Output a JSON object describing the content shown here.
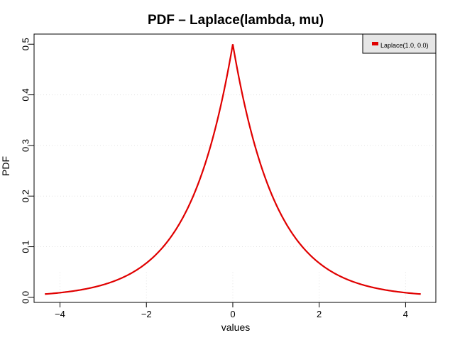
{
  "chart_data": {
    "type": "line",
    "title": "PDF – Laplace(lambda, mu)",
    "xlabel": "values",
    "ylabel": "PDF",
    "xlim": [
      -4.6,
      4.7
    ],
    "ylim": [
      -0.01,
      0.52
    ],
    "xticks": [
      -4,
      -2,
      0,
      2,
      4
    ],
    "xtick_labels": [
      "−4",
      "−2",
      "0",
      "2",
      "4"
    ],
    "yticks": [
      0.0,
      0.1,
      0.2,
      0.3,
      0.4,
      0.5
    ],
    "ytick_labels": [
      "0.0",
      "0.1",
      "0.2",
      "0.3",
      "0.4",
      "0.5"
    ],
    "grid": true,
    "legend_position": "top-right",
    "series": [
      {
        "name": "Laplace(1.0, 0.0)",
        "color": "#e00000",
        "distribution": "laplace",
        "lambda": 1.0,
        "mu": 0.0,
        "x": [
          -4.35,
          -4.0,
          -3.5,
          -3.0,
          -2.5,
          -2.0,
          -1.5,
          -1.0,
          -0.75,
          -0.5,
          -0.25,
          0.0,
          0.25,
          0.5,
          0.75,
          1.0,
          1.5,
          2.0,
          2.5,
          3.0,
          3.5,
          4.0,
          4.35
        ],
        "y": [
          0.0065,
          0.0092,
          0.0151,
          0.0249,
          0.041,
          0.0677,
          0.1116,
          0.1839,
          0.2362,
          0.3033,
          0.3894,
          0.5,
          0.3894,
          0.3033,
          0.2362,
          0.1839,
          0.1116,
          0.0677,
          0.041,
          0.0249,
          0.0151,
          0.0092,
          0.0065
        ]
      }
    ]
  }
}
